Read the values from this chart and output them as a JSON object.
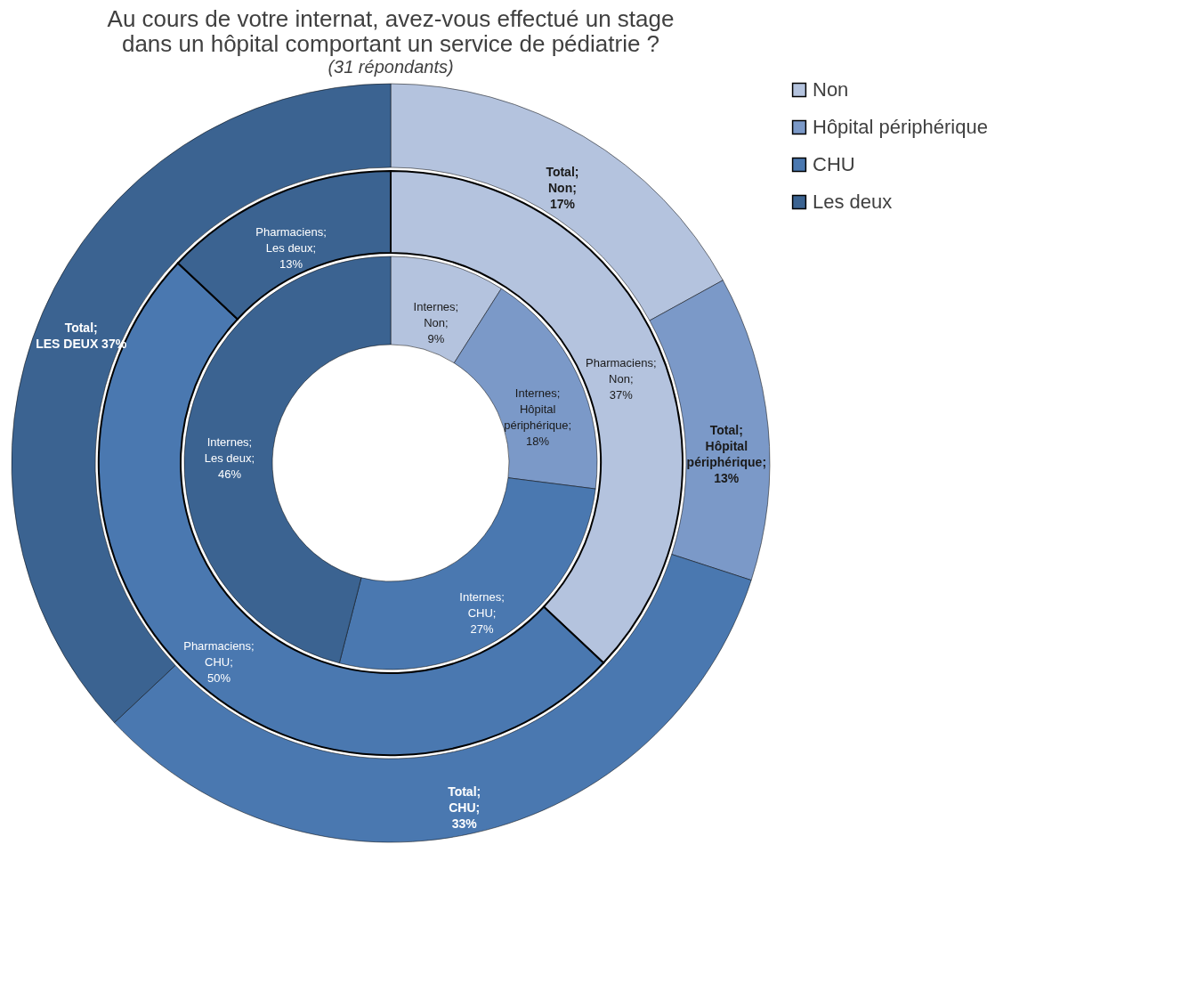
{
  "chart_data": {
    "type": "donut",
    "title": "Au cours de votre internat, avez-vous effectué un stage dans un hôpital comportant un service de pédiatrie ?",
    "subtitle": "(31 répondants)",
    "categories": [
      "Non",
      "Hôpital périphérique",
      "CHU",
      "Les deux"
    ],
    "colors": [
      "#b4c3de",
      "#7b99c8",
      "#4a78b0",
      "#3b6391"
    ],
    "series": [
      {
        "values": [
          9,
          18,
          27,
          46
        ],
        "value_labels": [
          "Internes; Non; 9%",
          "Internes; Hôpital périphérique; 18%",
          "Internes; CHU; 27%",
          "Internes; Les deux; 46%"
        ]
      },
      {
        "values": [
          37,
          0,
          50,
          13
        ],
        "value_labels": [
          "Pharmaciens; Non; 37%",
          null,
          "Pharmaciens; CHU; 50%",
          "Pharmaciens; Les deux; 13%"
        ]
      },
      {
        "values": [
          17,
          13,
          33,
          37
        ],
        "value_labels": [
          "Total; Non; 17%",
          "Total; Hôpital périphérique; 13%",
          "Total; CHU; 33%",
          "Total;LES DEUX 37%"
        ]
      }
    ],
    "legend": "top right"
  }
}
